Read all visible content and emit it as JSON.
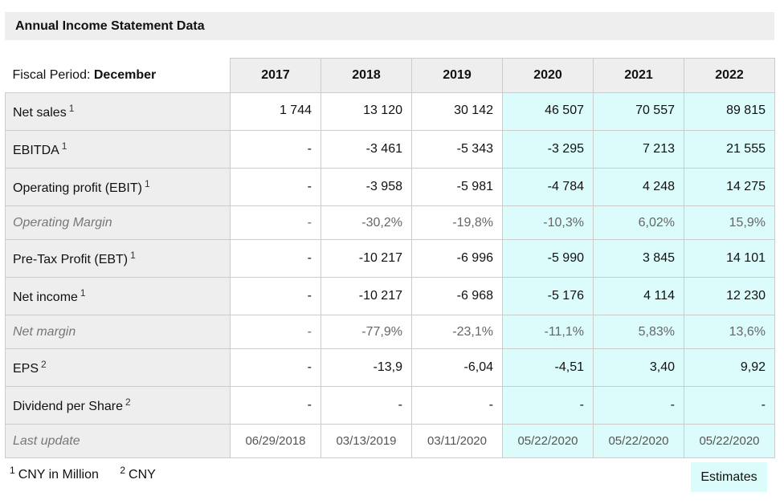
{
  "title": "Annual Income Statement Data",
  "fiscal_period": {
    "label": "Fiscal Period:",
    "value": "December"
  },
  "years": [
    "2017",
    "2018",
    "2019",
    "2020",
    "2021",
    "2022"
  ],
  "estimate_start_index": 3,
  "rows": [
    {
      "label": "Net sales",
      "note": "1",
      "italic": false,
      "values": [
        "1 744",
        "13 120",
        "30 142",
        "46 507",
        "70 557",
        "89 815"
      ]
    },
    {
      "label": "EBITDA",
      "note": "1",
      "italic": false,
      "values": [
        "-",
        "-3 461",
        "-5 343",
        "-3 295",
        "7 213",
        "21 555"
      ]
    },
    {
      "label": "Operating profit (EBIT)",
      "note": "1",
      "italic": false,
      "values": [
        "-",
        "-3 958",
        "-5 981",
        "-4 784",
        "4 248",
        "14 275"
      ]
    },
    {
      "label": "Operating Margin",
      "note": "",
      "italic": true,
      "values": [
        "-",
        "-30,2%",
        "-19,8%",
        "-10,3%",
        "6,02%",
        "15,9%"
      ]
    },
    {
      "label": "Pre-Tax Profit (EBT)",
      "note": "1",
      "italic": false,
      "values": [
        "-",
        "-10 217",
        "-6 996",
        "-5 990",
        "3 845",
        "14 101"
      ]
    },
    {
      "label": "Net income",
      "note": "1",
      "italic": false,
      "values": [
        "-",
        "-10 217",
        "-6 968",
        "-5 176",
        "4 114",
        "12 230"
      ]
    },
    {
      "label": "Net margin",
      "note": "",
      "italic": true,
      "values": [
        "-",
        "-77,9%",
        "-23,1%",
        "-11,1%",
        "5,83%",
        "13,6%"
      ]
    },
    {
      "label": "EPS",
      "note": "2",
      "italic": false,
      "values": [
        "-",
        "-13,9",
        "-6,04",
        "-4,51",
        "3,40",
        "9,92"
      ]
    },
    {
      "label": "Dividend per Share",
      "note": "2",
      "italic": false,
      "values": [
        "-",
        "-",
        "-",
        "-",
        "-",
        "-"
      ]
    },
    {
      "label": "Last update",
      "note": "",
      "italic": true,
      "values": [
        "06/29/2018",
        "03/13/2019",
        "03/11/2020",
        "05/22/2020",
        "05/22/2020",
        "05/22/2020"
      ]
    }
  ],
  "footnotes": [
    {
      "mark": "1",
      "text": "CNY in Million"
    },
    {
      "mark": "2",
      "text": "CNY"
    }
  ],
  "estimates_label": "Estimates",
  "colors": {
    "header_bg": "#eeeeee",
    "estimate_bg": "#dcfbfb",
    "border": "#cccccc"
  }
}
